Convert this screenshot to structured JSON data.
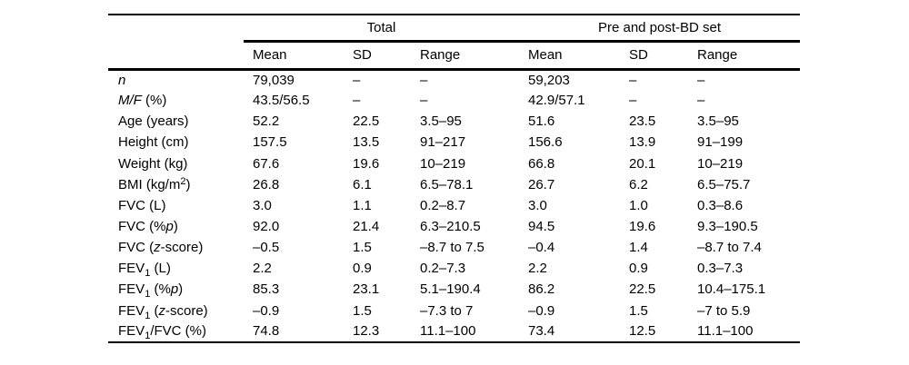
{
  "page": {
    "background_color": "#ffffff",
    "text_color": "#000000",
    "rule_color": "#000000"
  },
  "table": {
    "group_headers": [
      {
        "label": "Total"
      },
      {
        "label": "Pre and post-BD set"
      }
    ],
    "column_headers": [
      "Mean",
      "SD",
      "Range",
      "Mean",
      "SD",
      "Range"
    ],
    "rows": [
      {
        "label": [
          {
            "t": "n",
            "s": "i"
          }
        ],
        "cells": [
          "79,039",
          "–",
          "–",
          "59,203",
          "–",
          "–"
        ]
      },
      {
        "label": [
          {
            "t": "M/F",
            "s": "i"
          },
          {
            "t": " (%)",
            "s": ""
          }
        ],
        "cells": [
          "43.5/56.5",
          "–",
          "–",
          "42.9/57.1",
          "–",
          "–"
        ]
      },
      {
        "label": [
          {
            "t": "Age (years)",
            "s": ""
          }
        ],
        "cells": [
          "52.2",
          "22.5",
          "3.5–95",
          "51.6",
          "23.5",
          "3.5–95"
        ]
      },
      {
        "label": [
          {
            "t": "Height (cm)",
            "s": ""
          }
        ],
        "cells": [
          "157.5",
          "13.5",
          "91–217",
          "156.6",
          "13.9",
          "91–199"
        ]
      },
      {
        "label": [
          {
            "t": "Weight (kg)",
            "s": ""
          }
        ],
        "cells": [
          "67.6",
          "19.6",
          "10–219",
          "66.8",
          "20.1",
          "10–219"
        ]
      },
      {
        "label": [
          {
            "t": "BMI (kg/m",
            "s": ""
          },
          {
            "t": "2",
            "s": "sup"
          },
          {
            "t": ")",
            "s": ""
          }
        ],
        "cells": [
          "26.8",
          "6.1",
          "6.5–78.1",
          "26.7",
          "6.2",
          "6.5–75.7"
        ]
      },
      {
        "label": [
          {
            "t": "FVC (L)",
            "s": ""
          }
        ],
        "cells": [
          "3.0",
          "1.1",
          "0.2–8.7",
          "3.0",
          "1.0",
          "0.3–8.6"
        ]
      },
      {
        "label": [
          {
            "t": "FVC (%",
            "s": ""
          },
          {
            "t": "p",
            "s": "i"
          },
          {
            "t": ")",
            "s": ""
          }
        ],
        "cells": [
          "92.0",
          "21.4",
          "6.3–210.5",
          "94.5",
          "19.6",
          "9.3–190.5"
        ]
      },
      {
        "label": [
          {
            "t": "FVC (",
            "s": ""
          },
          {
            "t": "z",
            "s": "i"
          },
          {
            "t": "-score)",
            "s": ""
          }
        ],
        "cells": [
          "–0.5",
          "1.5",
          "–8.7 to 7.5",
          "–0.4",
          "1.4",
          "–8.7 to 7.4"
        ]
      },
      {
        "label": [
          {
            "t": "FEV",
            "s": ""
          },
          {
            "t": "1",
            "s": "sub"
          },
          {
            "t": " (L)",
            "s": ""
          }
        ],
        "cells": [
          "2.2",
          "0.9",
          "0.2–7.3",
          "2.2",
          "0.9",
          "0.3–7.3"
        ]
      },
      {
        "label": [
          {
            "t": "FEV",
            "s": ""
          },
          {
            "t": "1",
            "s": "sub"
          },
          {
            "t": " (%",
            "s": ""
          },
          {
            "t": "p",
            "s": "i"
          },
          {
            "t": ")",
            "s": ""
          }
        ],
        "cells": [
          "85.3",
          "23.1",
          "5.1–190.4",
          "86.2",
          "22.5",
          "10.4–175.1"
        ]
      },
      {
        "label": [
          {
            "t": "FEV",
            "s": ""
          },
          {
            "t": "1",
            "s": "sub"
          },
          {
            "t": " (",
            "s": ""
          },
          {
            "t": "z",
            "s": "i"
          },
          {
            "t": "-score)",
            "s": ""
          }
        ],
        "cells": [
          "–0.9",
          "1.5",
          "–7.3 to 7",
          "–0.9",
          "1.5",
          "–7 to 5.9"
        ]
      },
      {
        "label": [
          {
            "t": "FEV",
            "s": ""
          },
          {
            "t": "1",
            "s": "sub"
          },
          {
            "t": "/FVC (%)",
            "s": ""
          }
        ],
        "cells": [
          "74.8",
          "12.3",
          "11.1–100",
          "73.4",
          "12.5",
          "11.1–100"
        ]
      }
    ]
  }
}
